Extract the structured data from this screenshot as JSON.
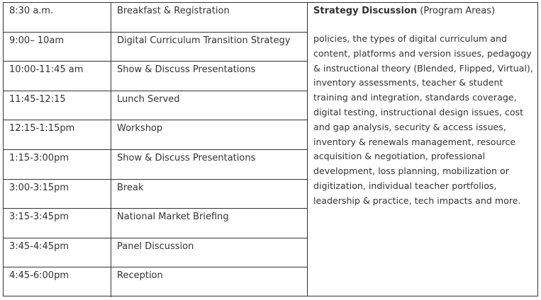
{
  "agenda": {
    "rows": [
      {
        "time": "8:30 a.m.",
        "event": "Breakfast & Registration"
      },
      {
        "time": "9:00– 10am",
        "event": "Digital Curriculum Transition Strategy"
      },
      {
        "time": "10:00-11:45 am",
        "event": "Show & Discuss Presentations"
      },
      {
        "time": "11:45-12:15",
        "event": "Lunch Served"
      },
      {
        "time": "12:15-1:15pm",
        "event": "Workshop"
      },
      {
        "time": "1:15-3:00pm",
        "event": "Show & Discuss Presentations"
      },
      {
        "time": "3:00-3:15pm",
        "event": "Break"
      },
      {
        "time": "3:15-3:45pm",
        "event": "National Market Briefing"
      },
      {
        "time": "3:45-4:45pm",
        "event": "Panel Discussion"
      },
      {
        "time": "4:45-6:00pm",
        "event": "Reception"
      }
    ]
  },
  "strategy": {
    "title": "Strategy Discussion",
    "subtitle": " (Program Areas)",
    "body": "policies, the types of digital curriculum and content, platforms and version issues, pedagogy & instructional theory (Blended, Flipped, Virtual), inventory assessments, teacher & student training and integration, standards coverage, digital testing, instructional design issues, cost and gap analysis, security & access issues, inventory & renewals management, resource acquisition & negotiation, professional development, loss planning, mobilization or digitization, individual teacher portfolios, leadership & practice, tech impacts and more."
  }
}
